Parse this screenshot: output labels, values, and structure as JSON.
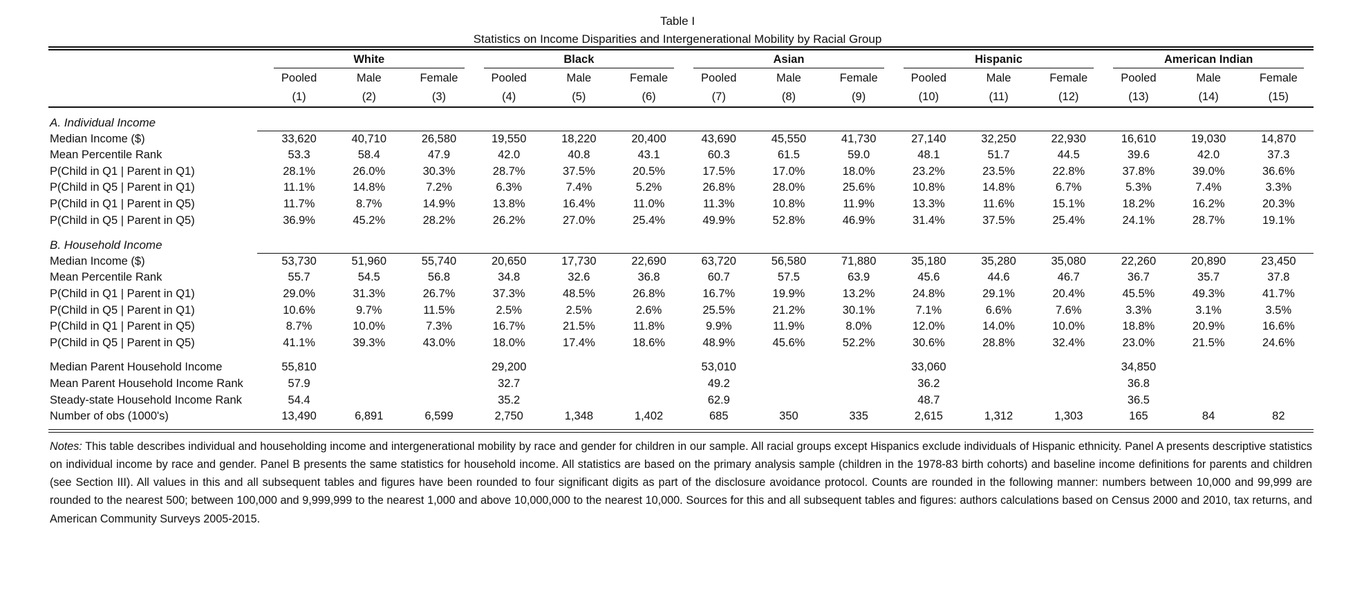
{
  "table": {
    "title": "Table I",
    "subtitle": "Statistics on Income Disparities and Intergenerational Mobility by Racial Group"
  },
  "groups": [
    "White",
    "Black",
    "Asian",
    "Hispanic",
    "American Indian"
  ],
  "subgroups": [
    "Pooled",
    "Male",
    "Female"
  ],
  "column_numbers": [
    "(1)",
    "(2)",
    "(3)",
    "(4)",
    "(5)",
    "(6)",
    "(7)",
    "(8)",
    "(9)",
    "(10)",
    "(11)",
    "(12)",
    "(13)",
    "(14)",
    "(15)"
  ],
  "panel_a": {
    "title": "A. Individual Income",
    "rows": [
      {
        "label": "Median Income ($)",
        "values": [
          "33,620",
          "40,710",
          "26,580",
          "19,550",
          "18,220",
          "20,400",
          "43,690",
          "45,550",
          "41,730",
          "27,140",
          "32,250",
          "22,930",
          "16,610",
          "19,030",
          "14,870"
        ]
      },
      {
        "label": "Mean Percentile Rank",
        "values": [
          "53.3",
          "58.4",
          "47.9",
          "42.0",
          "40.8",
          "43.1",
          "60.3",
          "61.5",
          "59.0",
          "48.1",
          "51.7",
          "44.5",
          "39.6",
          "42.0",
          "37.3"
        ]
      },
      {
        "label": "P(Child in Q1 | Parent in Q1)",
        "values": [
          "28.1%",
          "26.0%",
          "30.3%",
          "28.7%",
          "37.5%",
          "20.5%",
          "17.5%",
          "17.0%",
          "18.0%",
          "23.2%",
          "23.5%",
          "22.8%",
          "37.8%",
          "39.0%",
          "36.6%"
        ]
      },
      {
        "label": "P(Child in Q5 | Parent in Q1)",
        "values": [
          "11.1%",
          "14.8%",
          "7.2%",
          "6.3%",
          "7.4%",
          "5.2%",
          "26.8%",
          "28.0%",
          "25.6%",
          "10.8%",
          "14.8%",
          "6.7%",
          "5.3%",
          "7.4%",
          "3.3%"
        ]
      },
      {
        "label": "P(Child in Q1 | Parent in Q5)",
        "values": [
          "11.7%",
          "8.7%",
          "14.9%",
          "13.8%",
          "16.4%",
          "11.0%",
          "11.3%",
          "10.8%",
          "11.9%",
          "13.3%",
          "11.6%",
          "15.1%",
          "18.2%",
          "16.2%",
          "20.3%"
        ]
      },
      {
        "label": "P(Child in Q5 | Parent in Q5)",
        "values": [
          "36.9%",
          "45.2%",
          "28.2%",
          "26.2%",
          "27.0%",
          "25.4%",
          "49.9%",
          "52.8%",
          "46.9%",
          "31.4%",
          "37.5%",
          "25.4%",
          "24.1%",
          "28.7%",
          "19.1%"
        ]
      }
    ]
  },
  "panel_b": {
    "title": "B. Household Income",
    "rows": [
      {
        "label": "Median Income ($)",
        "values": [
          "53,730",
          "51,960",
          "55,740",
          "20,650",
          "17,730",
          "22,690",
          "63,720",
          "56,580",
          "71,880",
          "35,180",
          "35,280",
          "35,080",
          "22,260",
          "20,890",
          "23,450"
        ]
      },
      {
        "label": "Mean Percentile Rank",
        "values": [
          "55.7",
          "54.5",
          "56.8",
          "34.8",
          "32.6",
          "36.8",
          "60.7",
          "57.5",
          "63.9",
          "45.6",
          "44.6",
          "46.7",
          "36.7",
          "35.7",
          "37.8"
        ]
      },
      {
        "label": "P(Child in Q1 | Parent in Q1)",
        "values": [
          "29.0%",
          "31.3%",
          "26.7%",
          "37.3%",
          "48.5%",
          "26.8%",
          "16.7%",
          "19.9%",
          "13.2%",
          "24.8%",
          "29.1%",
          "20.4%",
          "45.5%",
          "49.3%",
          "41.7%"
        ]
      },
      {
        "label": "P(Child in Q5 | Parent in Q1)",
        "values": [
          "10.6%",
          "9.7%",
          "11.5%",
          "2.5%",
          "2.5%",
          "2.6%",
          "25.5%",
          "21.2%",
          "30.1%",
          "7.1%",
          "6.6%",
          "7.6%",
          "3.3%",
          "3.1%",
          "3.5%"
        ]
      },
      {
        "label": "P(Child in Q1 | Parent in Q5)",
        "values": [
          "8.7%",
          "10.0%",
          "7.3%",
          "16.7%",
          "21.5%",
          "11.8%",
          "9.9%",
          "11.9%",
          "8.0%",
          "12.0%",
          "14.0%",
          "10.0%",
          "18.8%",
          "20.9%",
          "16.6%"
        ]
      },
      {
        "label": "P(Child in Q5 | Parent in Q5)",
        "values": [
          "41.1%",
          "39.3%",
          "43.0%",
          "18.0%",
          "17.4%",
          "18.6%",
          "48.9%",
          "45.6%",
          "52.2%",
          "30.6%",
          "28.8%",
          "32.4%",
          "23.0%",
          "21.5%",
          "24.6%"
        ]
      }
    ]
  },
  "extra": {
    "rows": [
      {
        "label": "Median Parent Household Income",
        "values": [
          "55,810",
          "",
          "",
          "29,200",
          "",
          "",
          "53,010",
          "",
          "",
          "33,060",
          "",
          "",
          "34,850",
          "",
          ""
        ]
      },
      {
        "label": "Mean Parent Household Income Rank",
        "values": [
          "57.9",
          "",
          "",
          "32.7",
          "",
          "",
          "49.2",
          "",
          "",
          "36.2",
          "",
          "",
          "36.8",
          "",
          ""
        ]
      },
      {
        "label": "Steady-state Household Income Rank",
        "values": [
          "54.4",
          "",
          "",
          "35.2",
          "",
          "",
          "62.9",
          "",
          "",
          "48.7",
          "",
          "",
          "36.5",
          "",
          ""
        ]
      },
      {
        "label": "Number of obs (1000's)",
        "values": [
          "13,490",
          "6,891",
          "6,599",
          "2,750",
          "1,348",
          "1,402",
          "685",
          "350",
          "335",
          "2,615",
          "1,312",
          "1,303",
          "165",
          "84",
          "82"
        ]
      }
    ]
  },
  "notes": {
    "label": "Notes:",
    "text": " This table describes individual and householding income and intergenerational mobility by race and gender for children in our sample. All racial groups except Hispanics exclude individuals of Hispanic ethnicity. Panel A presents descriptive statistics on individual income by race and gender. Panel B presents the same statistics for household income. All statistics are based on the primary analysis sample (children in the 1978-83 birth cohorts) and baseline income definitions for parents and children (see Section III). All values in this and all subsequent tables and figures have been rounded to four significant digits as part of the disclosure avoidance protocol. Counts are rounded in the following manner: numbers between 10,000 and 99,999 are rounded to the nearest 500; between 100,000 and 9,999,999 to the nearest 1,000 and above 10,000,000 to the nearest 10,000. Sources for this and all subsequent tables and figures: authors calculations based on Census 2000 and 2010, tax returns, and American Community Surveys 2005-2015."
  }
}
